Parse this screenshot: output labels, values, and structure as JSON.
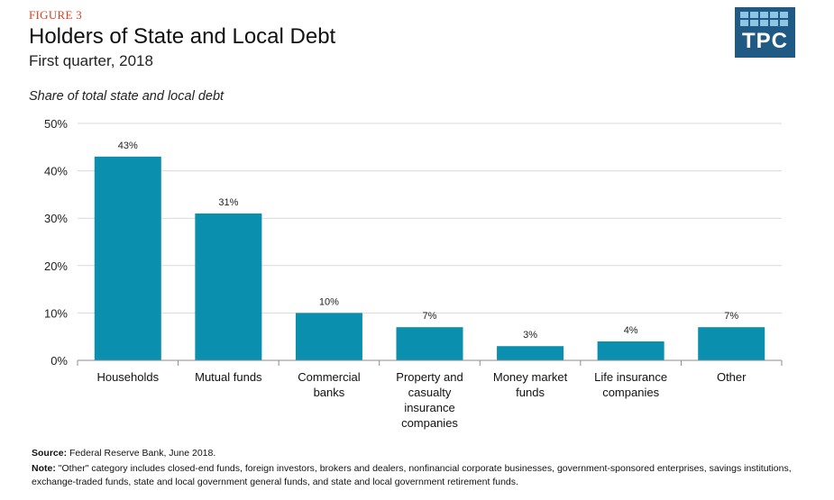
{
  "figure_label": "FIGURE 3",
  "title": "Holders of State and Local Debt",
  "subtitle": "First quarter, 2018",
  "logo_text": "TPC",
  "colors": {
    "bar": "#0a8fae",
    "accent": "#e0401e",
    "logo_bg": "#1f5a84"
  },
  "chart_data": {
    "type": "bar",
    "categories": [
      "Households",
      "Mutual funds",
      "Commercial banks",
      "Property and casualty insurance companies",
      "Money market funds",
      "Life insurance companies",
      "Other"
    ],
    "category_lines": [
      [
        "Households"
      ],
      [
        "Mutual funds"
      ],
      [
        "Commercial",
        "banks"
      ],
      [
        "Property and",
        "casualty",
        "insurance",
        "companies"
      ],
      [
        "Money market",
        "funds"
      ],
      [
        "Life insurance",
        "companies"
      ],
      [
        "Other"
      ]
    ],
    "values": [
      43,
      31,
      10,
      7,
      3,
      4,
      7
    ],
    "data_labels": [
      "43%",
      "31%",
      "10%",
      "7%",
      "3%",
      "4%",
      "7%"
    ],
    "ylabel": "Share of total state and local debt",
    "ylim": [
      0,
      50
    ],
    "yticks": [
      0,
      10,
      20,
      30,
      40,
      50
    ],
    "ytick_labels": [
      "0%",
      "10%",
      "20%",
      "30%",
      "40%",
      "50%"
    ],
    "grid": true
  },
  "source_label": "Source:",
  "source_text": " Federal Reserve Bank, June 2018.",
  "note_label": "Note:",
  "note_text": " \"Other\" category includes closed-end funds, foreign investors, brokers and dealers, nonfinancial corporate businesses, government-sponsored enterprises, savings institutions, exchange-traded funds, state and local government general funds, and state and local government retirement funds."
}
